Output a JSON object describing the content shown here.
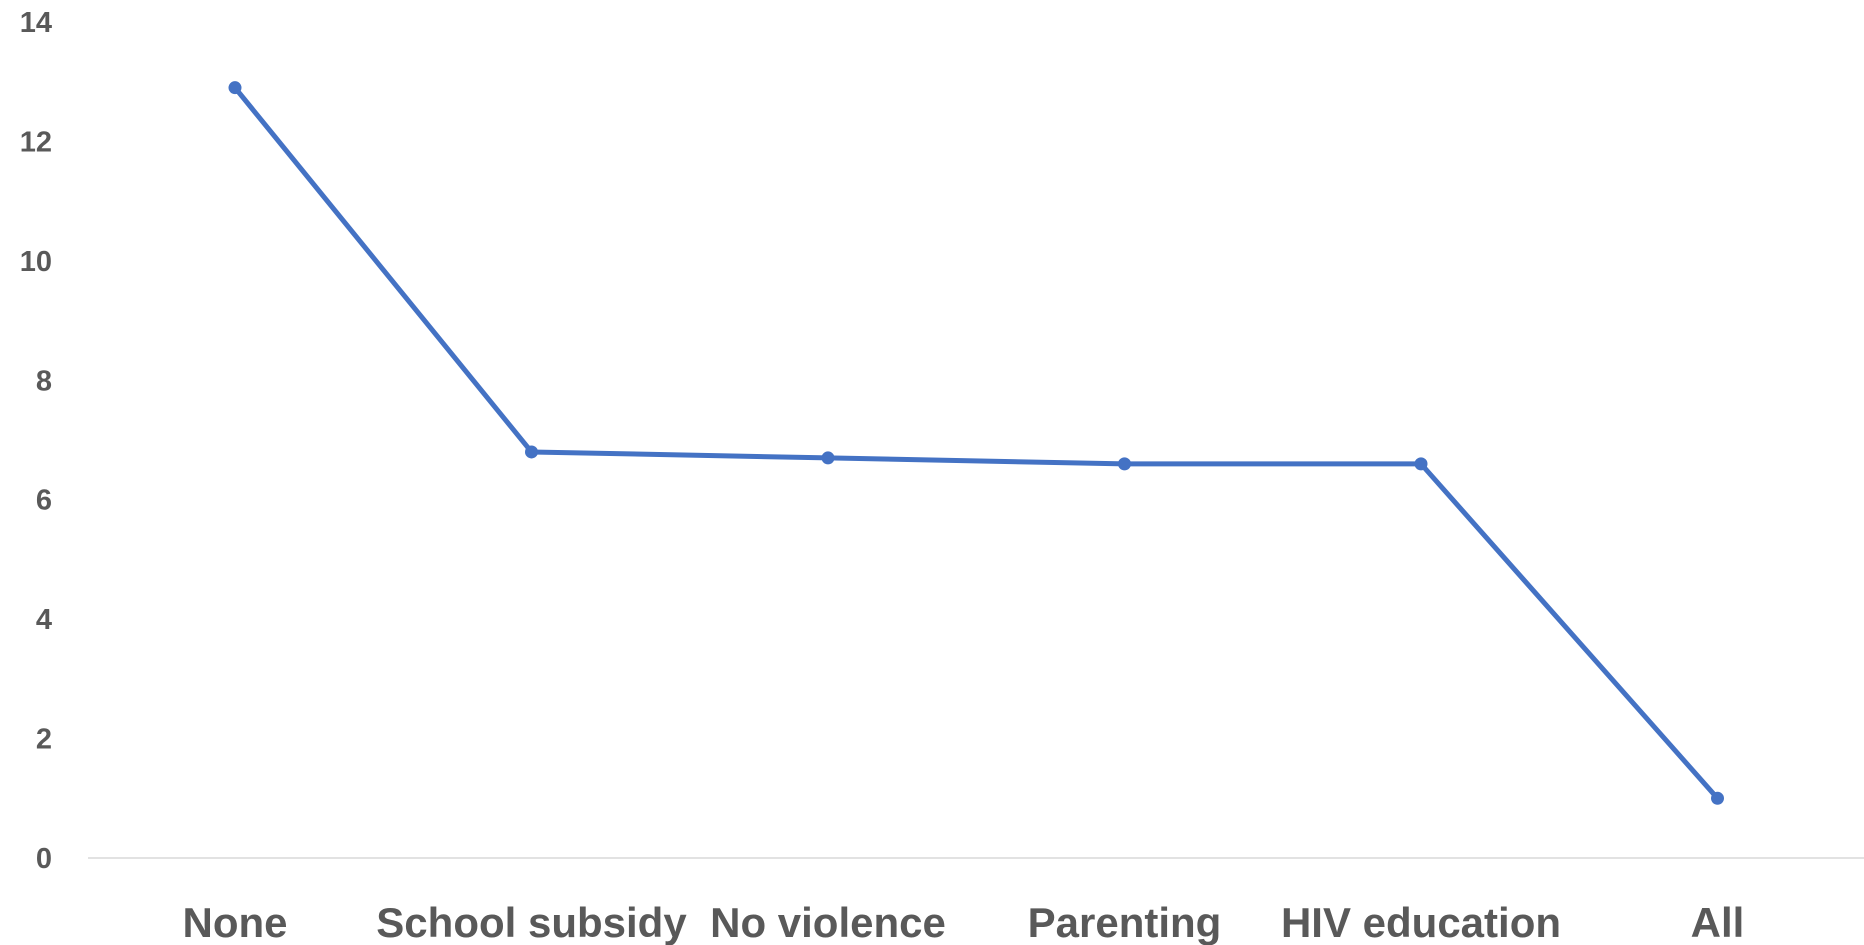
{
  "chart_data": {
    "type": "line",
    "title": "",
    "xlabel": "",
    "ylabel": "",
    "categories": [
      "None",
      "School subsidy",
      "No violence",
      "Parenting",
      "HIV education",
      "All"
    ],
    "series": [
      {
        "values": [
          12.9,
          6.8,
          6.7,
          6.6,
          6.6,
          1.0
        ],
        "color": "#4472C4"
      }
    ],
    "ylim": [
      0,
      14
    ],
    "yticks": [
      "0",
      "2",
      "4",
      "6",
      "8",
      "10",
      "12",
      "14"
    ],
    "grid": false,
    "legend": "none",
    "colors": {
      "line": "#4472C4",
      "axis": "#D9D9D9",
      "text": "#595959"
    }
  }
}
